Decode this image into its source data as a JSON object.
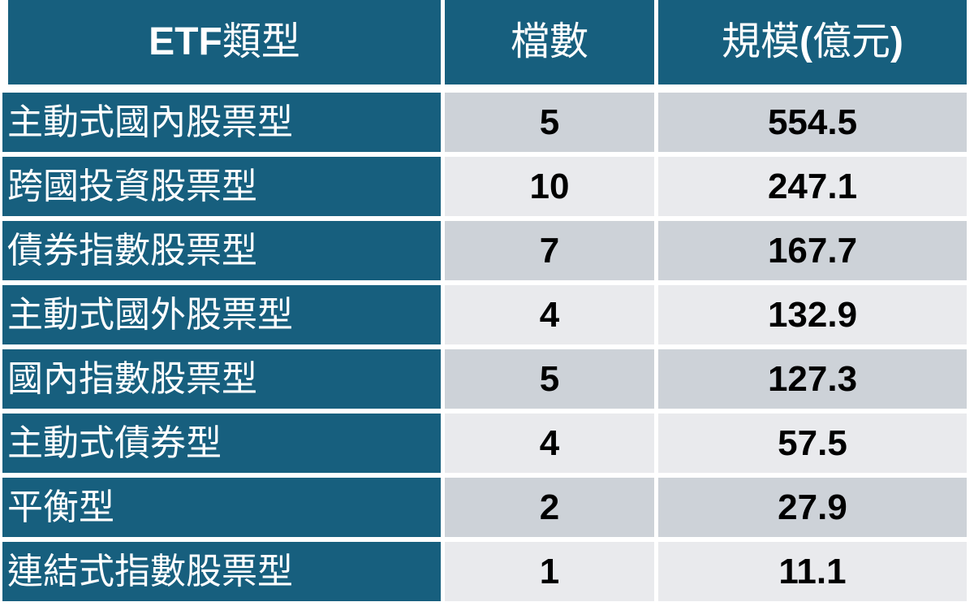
{
  "colors": {
    "background": "#FFFFFF",
    "header_bg": "#175F7E",
    "header_text": "#FFFFFF",
    "row_dark_bg": "#CDD2D8",
    "row_light_bg": "#E9EAED",
    "number_text": "#000000"
  },
  "table": {
    "header": [
      {
        "key": "type",
        "segments": [
          {
            "text": "ETF",
            "bold": true
          },
          {
            "text": "類型",
            "bold": false
          }
        ]
      },
      {
        "key": "count",
        "segments": [
          {
            "text": "檔數",
            "bold": false
          }
        ]
      },
      {
        "key": "scale",
        "segments": [
          {
            "text": "規模",
            "bold": false
          },
          {
            "text": "(",
            "bold": true
          },
          {
            "text": "億元",
            "bold": false
          },
          {
            "text": ")",
            "bold": true
          }
        ]
      }
    ]
  },
  "chart_data": {
    "type": "table",
    "columns": [
      "ETF類型",
      "檔數",
      "規模(億元)"
    ],
    "rows": [
      [
        "主動式國內股票型",
        5,
        554.5
      ],
      [
        "跨國投資股票型",
        10,
        247.1
      ],
      [
        "債券指數股票型",
        7,
        167.7
      ],
      [
        "主動式國外股票型",
        4,
        132.9
      ],
      [
        "國內指數股票型",
        5,
        127.3
      ],
      [
        "主動式債券型",
        4,
        57.5
      ],
      [
        "平衡型",
        2,
        27.9
      ],
      [
        "連結式指數股票型",
        1,
        11.1
      ]
    ]
  }
}
